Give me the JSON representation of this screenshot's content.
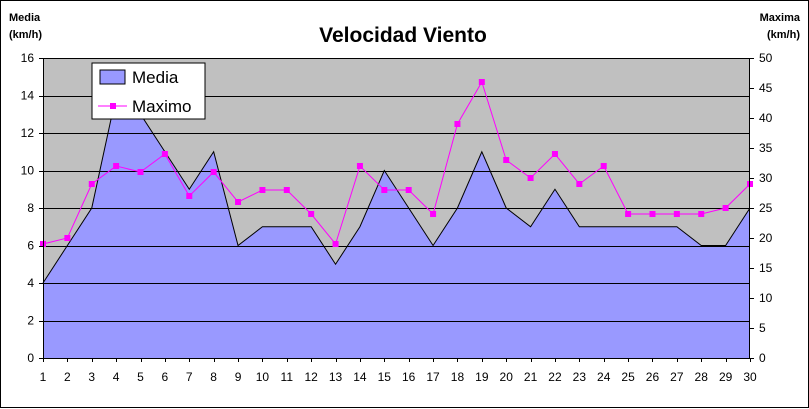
{
  "chart_data": {
    "type": "area+line",
    "title": "Velocidad Viento",
    "ylabel_left": [
      "Media",
      "(km/h)"
    ],
    "ylabel_right": [
      "Maxima",
      "(km/h)"
    ],
    "x": [
      1,
      2,
      3,
      4,
      5,
      6,
      7,
      8,
      9,
      10,
      11,
      12,
      13,
      14,
      15,
      16,
      17,
      18,
      19,
      20,
      21,
      22,
      23,
      24,
      25,
      26,
      27,
      28,
      29,
      30
    ],
    "ylim_left": [
      0,
      16
    ],
    "yticks_left": [
      0,
      2,
      4,
      6,
      8,
      10,
      12,
      14,
      16
    ],
    "ylim_right": [
      0,
      50
    ],
    "yticks_right": [
      0,
      5,
      10,
      15,
      20,
      25,
      30,
      35,
      40,
      45,
      50
    ],
    "grid": true,
    "legend_position": "top-left",
    "series": [
      {
        "name": "Media",
        "kind": "area",
        "axis": "left",
        "color": "#9999ff",
        "values": [
          4,
          6,
          8,
          14,
          13,
          11,
          9,
          11,
          6,
          7,
          7,
          7,
          5,
          7,
          10,
          8,
          6,
          8,
          11,
          8,
          7,
          9,
          7,
          7,
          7,
          7,
          7,
          6,
          6,
          8
        ]
      },
      {
        "name": "Maximo",
        "kind": "line",
        "axis": "right",
        "color": "#ff00ff",
        "values": [
          19,
          20,
          29,
          32,
          31,
          34,
          27,
          31,
          26,
          28,
          28,
          24,
          19,
          32,
          28,
          28,
          24,
          39,
          46,
          33,
          30,
          34,
          29,
          32,
          24,
          24,
          24,
          24,
          25,
          29
        ]
      }
    ],
    "colors": {
      "plot_background": "#c0c0c0",
      "gridline": "#000000"
    }
  }
}
